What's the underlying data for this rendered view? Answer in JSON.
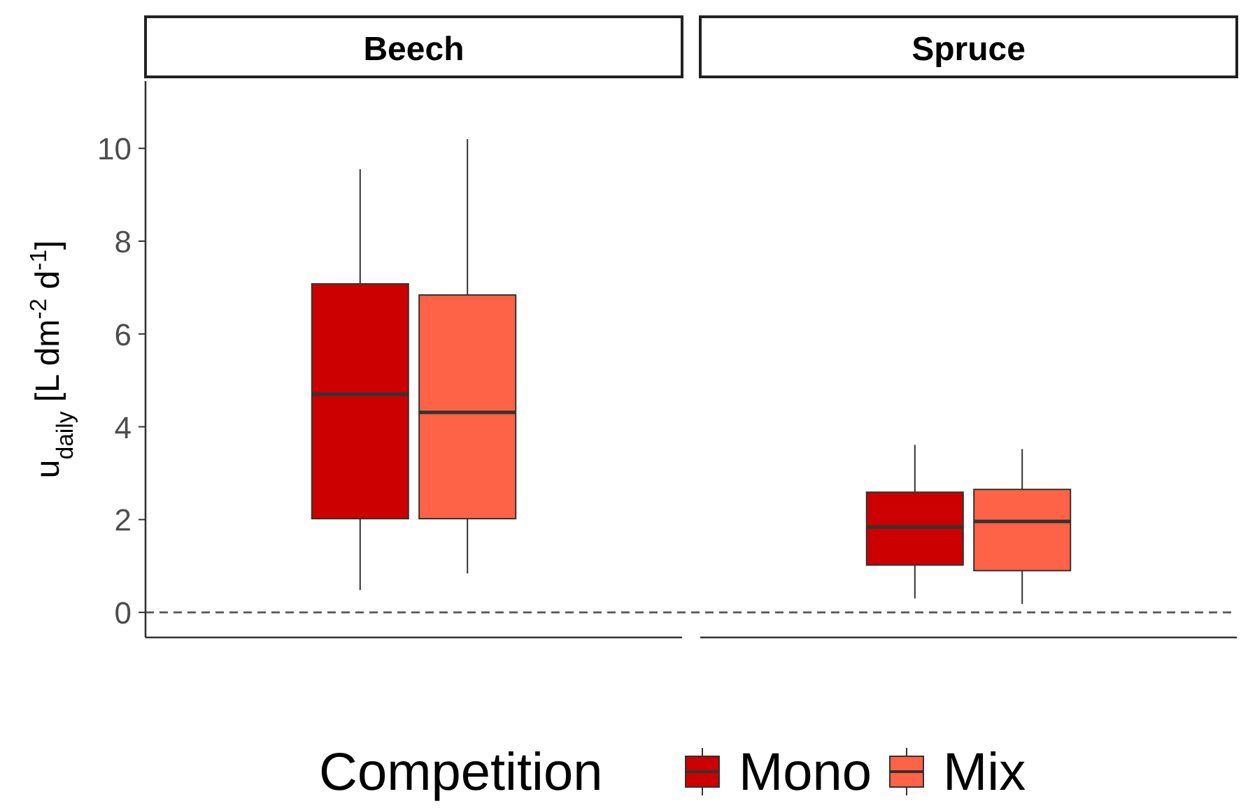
{
  "chart_data": {
    "type": "box",
    "ylabel": "u$_{daily}$ [L dm$^{-2}$ d$^{-1}$]",
    "categories": [
      "Beech",
      "Spruce"
    ],
    "ylim": [
      -0.54,
      11.45
    ],
    "yticks": [
      0,
      2,
      4,
      6,
      8,
      10
    ],
    "legend": "bottom",
    "legend_title": "Competition",
    "ref_lines": [
      {
        "axis": "y",
        "value": 0,
        "line_style": "dashed",
        "color": "#555555"
      }
    ],
    "series": [
      {
        "name": "Mono",
        "color": "#cc0000",
        "boxes": [
          {
            "low": 0.48,
            "q1": 2.02,
            "median": 4.7,
            "q3": 7.08,
            "high": 9.55
          },
          {
            "low": 0.3,
            "q1": 1.02,
            "median": 1.84,
            "q3": 2.59,
            "high": 3.61
          }
        ]
      },
      {
        "name": "Mix",
        "color": "#ff6347",
        "boxes": [
          {
            "low": 0.84,
            "q1": 2.02,
            "median": 4.31,
            "q3": 6.84,
            "high": 10.2
          },
          {
            "low": 0.18,
            "q1": 0.9,
            "median": 1.96,
            "q3": 2.65,
            "high": 3.52
          }
        ]
      }
    ]
  }
}
